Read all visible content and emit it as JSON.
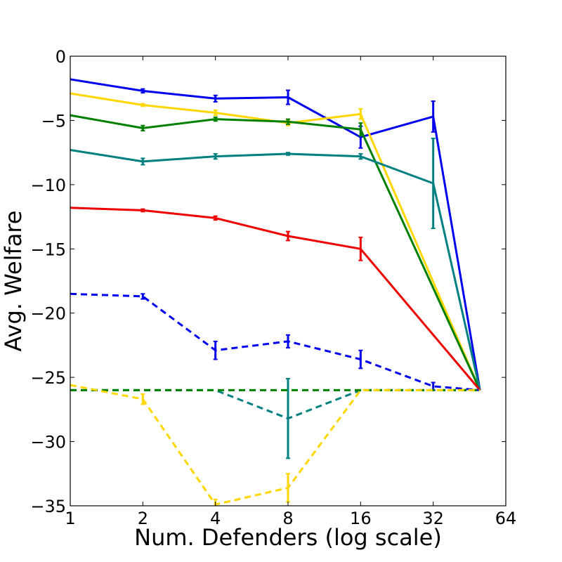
{
  "chart_data": {
    "type": "line",
    "title": "",
    "xlabel": "Num. Defenders (log scale)",
    "ylabel": "Avg. Welfare",
    "xscale": "log2",
    "xlim": [
      1,
      64
    ],
    "ylim": [
      -35,
      0
    ],
    "xticks": [
      1,
      2,
      4,
      8,
      16,
      32,
      64
    ],
    "xtick_labels": [
      "1",
      "2",
      "4",
      "8",
      "16",
      "32",
      "64"
    ],
    "yticks": [
      0,
      -5,
      -10,
      -15,
      -20,
      -25,
      -30,
      -35
    ],
    "ytick_labels": [
      "0",
      "−5",
      "−10",
      "−15",
      "−20",
      "−25",
      "−30",
      "−35"
    ],
    "grid": false,
    "legend": null,
    "series": [
      {
        "name": "blue-solid",
        "color": "#0000ee",
        "dash": "solid",
        "x": [
          1,
          2,
          4,
          8,
          16,
          32,
          50
        ],
        "y": [
          -1.8,
          -2.7,
          -3.3,
          -3.2,
          -6.3,
          -4.7,
          -26
        ],
        "err": [
          0,
          0.15,
          0.25,
          0.55,
          0.85,
          1.2,
          0
        ]
      },
      {
        "name": "yellow-solid",
        "color": "#ffd700",
        "dash": "solid",
        "x": [
          1,
          2,
          4,
          8,
          16,
          50
        ],
        "y": [
          -2.9,
          -3.8,
          -4.4,
          -5.2,
          -4.5,
          -26
        ],
        "err": [
          0,
          0.1,
          0.2,
          0.2,
          0.4,
          0
        ]
      },
      {
        "name": "green-solid",
        "color": "#008000",
        "dash": "solid",
        "x": [
          1,
          2,
          4,
          8,
          16,
          50
        ],
        "y": [
          -4.6,
          -5.6,
          -4.9,
          -5.1,
          -5.7,
          -26
        ],
        "err": [
          0,
          0.2,
          0.15,
          0.2,
          0.5,
          0
        ]
      },
      {
        "name": "teal-solid",
        "color": "#008080",
        "dash": "solid",
        "x": [
          1,
          2,
          4,
          8,
          16,
          32,
          50
        ],
        "y": [
          -7.3,
          -8.2,
          -7.8,
          -7.6,
          -7.8,
          -9.9,
          -26
        ],
        "err": [
          0,
          0.25,
          0.2,
          0.1,
          0.2,
          3.5,
          0
        ]
      },
      {
        "name": "red-solid",
        "color": "#ee0000",
        "dash": "solid",
        "x": [
          1,
          2,
          4,
          8,
          16,
          50
        ],
        "y": [
          -11.8,
          -12.0,
          -12.6,
          -14.0,
          -15.0,
          -26
        ],
        "err": [
          0,
          0.1,
          0.15,
          0.35,
          0.9,
          0
        ]
      },
      {
        "name": "blue-dashed",
        "color": "#0000ee",
        "dash": "dashed",
        "x": [
          1,
          2,
          4,
          8,
          16,
          32,
          50
        ],
        "y": [
          -18.5,
          -18.7,
          -22.9,
          -22.2,
          -23.6,
          -25.7,
          -26
        ],
        "err": [
          0,
          0.2,
          0.7,
          0.5,
          0.7,
          0.3,
          0
        ]
      },
      {
        "name": "teal-dashed",
        "color": "#008080",
        "dash": "dashed",
        "x": [
          1,
          2,
          4,
          8,
          16,
          32,
          50
        ],
        "y": [
          -26,
          -26,
          -26,
          -28.2,
          -26,
          -26,
          -26
        ],
        "err": [
          0,
          0,
          0,
          3.1,
          0,
          0,
          0
        ]
      },
      {
        "name": "green-dashed",
        "color": "#008000",
        "dash": "dashed",
        "x": [
          1,
          2,
          4,
          8,
          16,
          32,
          50
        ],
        "y": [
          -26,
          -26,
          -26,
          -26,
          -26,
          -26,
          -26
        ],
        "err": [
          0,
          0,
          0,
          0,
          0,
          0,
          0
        ]
      },
      {
        "name": "yellow-dashed",
        "color": "#ffd700",
        "dash": "dashed",
        "x": [
          1,
          2,
          4,
          8,
          16,
          32,
          50
        ],
        "y": [
          -25.6,
          -26.7,
          -34.9,
          -33.6,
          -26,
          -26,
          -26
        ],
        "err": [
          0,
          0.4,
          0.4,
          1.1,
          0,
          0,
          0
        ]
      }
    ]
  }
}
